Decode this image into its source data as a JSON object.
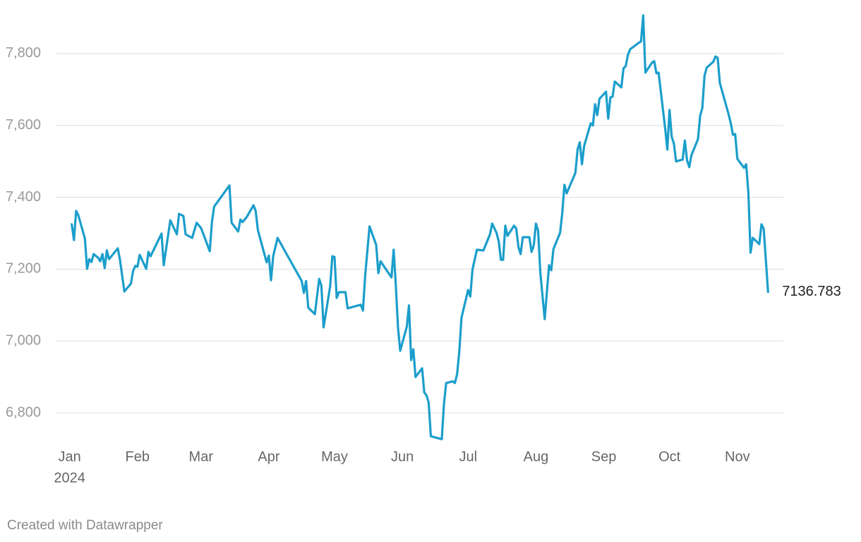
{
  "chart_data": {
    "type": "line",
    "x": [
      2,
      3,
      4,
      5,
      8,
      9,
      10,
      11,
      12,
      14,
      15,
      16,
      17,
      18,
      19,
      23,
      24,
      26,
      29,
      30,
      31,
      32,
      33,
      36,
      37,
      38,
      43,
      44,
      47,
      50,
      51,
      53,
      54,
      57,
      59,
      61,
      63,
      65,
      66,
      67,
      74,
      75,
      78,
      79,
      80,
      82,
      85,
      86,
      87,
      91,
      92,
      93,
      94,
      96,
      107,
      108,
      109,
      110,
      113,
      115,
      116,
      117,
      120,
      121,
      122,
      123,
      124,
      127,
      128,
      134,
      135,
      136,
      138,
      141,
      142,
      143,
      148,
      149,
      150,
      151,
      152,
      155,
      156,
      157,
      158,
      159,
      162,
      163,
      164,
      165,
      166,
      171,
      172,
      173,
      176,
      177,
      178,
      179,
      180,
      183,
      184,
      185,
      187,
      190,
      193,
      194,
      196,
      197,
      198,
      199,
      200,
      201,
      204,
      205,
      206,
      207,
      208,
      211,
      212,
      213,
      214,
      215,
      216,
      218,
      220,
      221,
      222,
      225,
      226,
      227,
      228,
      232,
      233,
      234,
      235,
      236,
      239,
      240,
      241,
      242,
      243,
      246,
      247,
      248,
      249,
      250,
      253,
      254,
      255,
      256,
      257,
      261,
      262,
      263,
      264,
      267,
      268,
      269,
      270,
      273,
      274,
      275,
      276,
      277,
      278,
      281,
      282,
      283,
      284,
      285,
      288,
      289,
      290,
      291,
      292,
      295,
      296,
      297,
      298,
      302,
      303,
      304,
      305,
      306,
      309,
      310,
      311,
      312,
      313,
      316,
      317,
      318,
      320
    ],
    "values": [
      7325,
      7281,
      7362,
      7350,
      7285,
      7201,
      7228,
      7220,
      7242,
      7232,
      7222,
      7242,
      7203,
      7252,
      7228,
      7258,
      7226,
      7138,
      7160,
      7195,
      7209,
      7207,
      7240,
      7201,
      7248,
      7236,
      7299,
      7211,
      7336,
      7297,
      7354,
      7348,
      7297,
      7287,
      7329,
      7315,
      7283,
      7250,
      7331,
      7374,
      7433,
      7329,
      7305,
      7338,
      7331,
      7346,
      7378,
      7362,
      7309,
      7219,
      7238,
      7169,
      7236,
      7287,
      7167,
      7134,
      7167,
      7093,
      7075,
      7173,
      7154,
      7038,
      7152,
      7236,
      7234,
      7120,
      7136,
      7136,
      7091,
      7101,
      7085,
      7181,
      7319,
      7268,
      7189,
      7222,
      7177,
      7254,
      7154,
      7036,
      6973,
      7040,
      7099,
      6947,
      6977,
      6900,
      6924,
      6857,
      6849,
      6829,
      6735,
      6727,
      6826,
      6883,
      6888,
      6883,
      6908,
      6971,
      7065,
      7142,
      7124,
      7199,
      7254,
      7252,
      7297,
      7327,
      7301,
      7277,
      7226,
      7226,
      7321,
      7293,
      7321,
      7313,
      7262,
      7242,
      7289,
      7289,
      7248,
      7266,
      7327,
      7307,
      7191,
      7061,
      7211,
      7197,
      7256,
      7301,
      7356,
      7435,
      7411,
      7468,
      7533,
      7553,
      7492,
      7543,
      7606,
      7600,
      7659,
      7629,
      7674,
      7694,
      7619,
      7678,
      7680,
      7722,
      7706,
      7759,
      7765,
      7796,
      7812,
      7830,
      7834,
      7906,
      7747,
      7775,
      7779,
      7745,
      7747,
      7592,
      7533,
      7643,
      7568,
      7549,
      7500,
      7505,
      7558,
      7503,
      7484,
      7517,
      7562,
      7627,
      7649,
      7739,
      7761,
      7777,
      7792,
      7788,
      7718,
      7631,
      7606,
      7574,
      7576,
      7507,
      7482,
      7492,
      7413,
      7246,
      7287,
      7270,
      7325,
      7313,
      7136.783
    ],
    "color": "#1b9ecb",
    "xlim": [
      -5,
      327
    ],
    "xticks": [
      {
        "value": 1,
        "label": "Jan"
      },
      {
        "value": 32,
        "label": "Feb"
      },
      {
        "value": 61,
        "label": "Mar"
      },
      {
        "value": 92,
        "label": "Apr"
      },
      {
        "value": 122,
        "label": "May"
      },
      {
        "value": 153,
        "label": "Jun"
      },
      {
        "value": 183,
        "label": "Jul"
      },
      {
        "value": 214,
        "label": "Aug"
      },
      {
        "value": 245,
        "label": "Sep"
      },
      {
        "value": 275,
        "label": "Oct"
      },
      {
        "value": 306,
        "label": "Nov"
      }
    ],
    "xtick_year": "2024",
    "ylim": [
      6700,
      7900
    ],
    "yticks": [
      {
        "value": 6800,
        "label": "6,800"
      },
      {
        "value": 7000,
        "label": "7,000"
      },
      {
        "value": 7200,
        "label": "7,200"
      },
      {
        "value": 7400,
        "label": "7,400"
      },
      {
        "value": 7600,
        "label": "7,600"
      },
      {
        "value": 7800,
        "label": "7,800"
      }
    ],
    "grid": true,
    "footer": "Created with Datawrapper"
  }
}
